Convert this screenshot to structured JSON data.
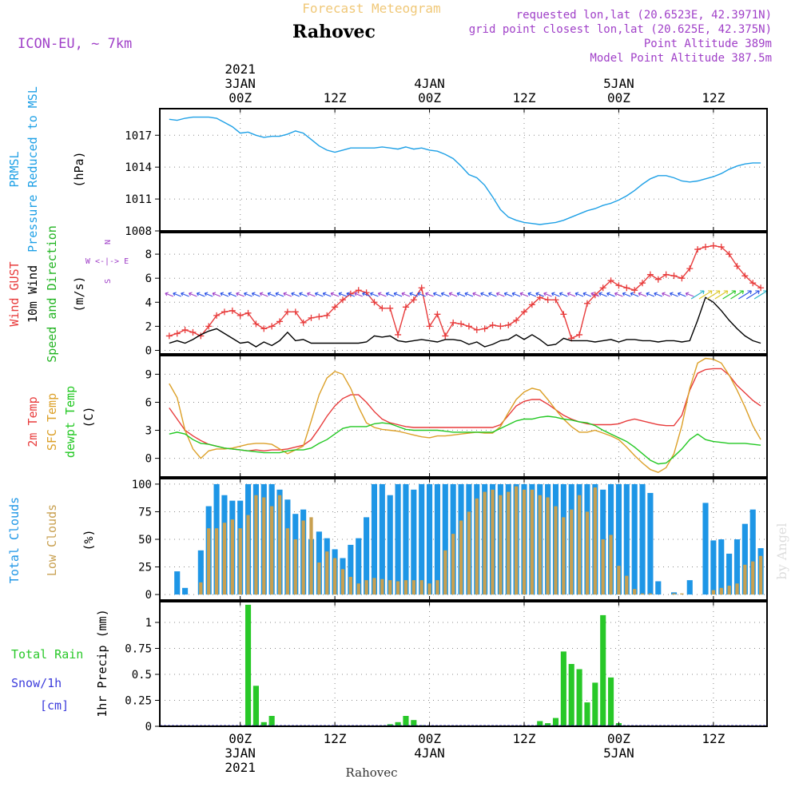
{
  "header": {
    "product": "Forecast Meteogram",
    "place": "Rahovec",
    "model": "ICON-EU, ~ 7km",
    "requested": "requested lon,lat (20.6523E, 42.3971N)",
    "grid_point": "grid point closest lon,lat (20.625E, 42.375N)",
    "point_alt": "Point Altitude 389m",
    "model_alt": "Model Point Altitude 387.5m",
    "footer_place": "Rahovec",
    "watermark": "by Angel"
  },
  "time_axis": {
    "top": [
      {
        "t": 0,
        "lines": [
          "2021",
          "3JAN",
          "00Z"
        ]
      },
      {
        "t": 12,
        "lines": [
          "12Z"
        ]
      },
      {
        "t": 24,
        "lines": [
          "4JAN",
          "00Z"
        ]
      },
      {
        "t": 36,
        "lines": [
          "12Z"
        ]
      },
      {
        "t": 48,
        "lines": [
          "5JAN",
          "00Z"
        ]
      },
      {
        "t": 60,
        "lines": [
          "12Z"
        ]
      }
    ],
    "bottom": [
      {
        "t": 0,
        "lines": [
          "00Z",
          "3JAN",
          "2021"
        ]
      },
      {
        "t": 12,
        "lines": [
          "12Z"
        ]
      },
      {
        "t": 24,
        "lines": [
          "00Z",
          "4JAN"
        ]
      },
      {
        "t": 36,
        "lines": [
          "12Z"
        ]
      },
      {
        "t": 48,
        "lines": [
          "00Z",
          "5JAN"
        ]
      },
      {
        "t": 60,
        "lines": [
          "12Z"
        ]
      }
    ]
  },
  "colors": {
    "pressure": "#1ea0e6",
    "gust": "#e83c3c",
    "wind10m": "#000000",
    "wind_green": "#22b422",
    "compass": "#a040c8",
    "t2m": "#e83c3c",
    "sfc": "#dca028",
    "dewpt": "#22c822",
    "total_clouds": "#1e96e6",
    "low_clouds": "#c8a050",
    "rain": "#28c828",
    "snow": "#3c3cdc",
    "header_orange": "#f0c878",
    "header_purple": "#a040c8"
  },
  "panels": {
    "pressure": {
      "label_colored": [
        "PRMSL",
        "Pressure Reduced to MSL"
      ],
      "unit": "(hPa)"
    },
    "wind": {
      "label_red": "Wind GUST",
      "label_black": "10m Wind",
      "label_green": "Speed and Direction",
      "unit": "(m/s)",
      "compass": [
        "N",
        "W <-|-> E",
        "S"
      ]
    },
    "temp": {
      "label_red": "2m Temp",
      "label_orange": "SFC Temp",
      "label_green": "dewpt Temp",
      "unit": "(C)"
    },
    "clouds": {
      "label_blue": "Total Clouds",
      "label_orange": "Low Clouds",
      "unit": "(%)"
    },
    "precip": {
      "label_rain": "Total Rain",
      "label_snow": "Snow/1h",
      "label_cm": "[cm]",
      "unit": "1hr Precip (mm)"
    }
  },
  "chart_data": [
    {
      "type": "line",
      "name": "PRMSL",
      "ylabel": "(hPa)",
      "ylim": [
        1008,
        1019.5
      ],
      "yticks": [
        1008,
        1011,
        1014,
        1017
      ],
      "x": [
        -9,
        -8,
        -7,
        -6,
        -5,
        -4,
        -3,
        -2,
        -1,
        0,
        1,
        2,
        3,
        4,
        5,
        6,
        7,
        8,
        9,
        10,
        11,
        12,
        13,
        14,
        15,
        16,
        17,
        18,
        19,
        20,
        21,
        22,
        23,
        24,
        25,
        26,
        27,
        28,
        29,
        30,
        31,
        32,
        33,
        34,
        35,
        36,
        37,
        38,
        39,
        40,
        41,
        42,
        43,
        44,
        45,
        46,
        47,
        48,
        49,
        50,
        51,
        52,
        53,
        54,
        55,
        56,
        57,
        58,
        59,
        60,
        61,
        62,
        63,
        64,
        65,
        66
      ],
      "series": [
        {
          "values": [
            1018.5,
            1018.4,
            1018.6,
            1018.7,
            1018.7,
            1018.7,
            1018.6,
            1018.2,
            1017.8,
            1017.2,
            1017.3,
            1017.0,
            1016.8,
            1016.9,
            1016.9,
            1017.1,
            1017.4,
            1017.2,
            1016.6,
            1016.0,
            1015.6,
            1015.4,
            1015.6,
            1015.8,
            1015.8,
            1015.8,
            1015.8,
            1015.9,
            1015.8,
            1015.7,
            1015.9,
            1015.7,
            1015.8,
            1015.6,
            1015.5,
            1015.2,
            1014.8,
            1014.1,
            1013.3,
            1013.0,
            1012.3,
            1011.2,
            1010.0,
            1009.3,
            1009.0,
            1008.8,
            1008.7,
            1008.6,
            1008.7,
            1008.8,
            1009.0,
            1009.3,
            1009.6,
            1009.9,
            1010.1,
            1010.4,
            1010.6,
            1010.9,
            1011.3,
            1011.8,
            1012.4,
            1012.9,
            1013.2,
            1013.2,
            1013.0,
            1012.7,
            1012.6,
            1012.7,
            1012.9,
            1013.1,
            1013.4,
            1013.8,
            1014.1,
            1014.3,
            1014.4,
            1014.4
          ]
        }
      ]
    },
    {
      "type": "line",
      "name": "Wind",
      "ylabel": "(m/s)",
      "ylim": [
        -0.3,
        9.8
      ],
      "yticks": [
        0,
        2,
        4,
        6,
        8
      ],
      "x": [
        -9,
        -8,
        -7,
        -6,
        -5,
        -4,
        -3,
        -2,
        -1,
        0,
        1,
        2,
        3,
        4,
        5,
        6,
        7,
        8,
        9,
        10,
        11,
        12,
        13,
        14,
        15,
        16,
        17,
        18,
        19,
        20,
        21,
        22,
        23,
        24,
        25,
        26,
        27,
        28,
        29,
        30,
        31,
        32,
        33,
        34,
        35,
        36,
        37,
        38,
        39,
        40,
        41,
        42,
        43,
        44,
        45,
        46,
        47,
        48,
        49,
        50,
        51,
        52,
        53,
        54,
        55,
        56,
        57,
        58,
        59,
        60,
        61,
        62,
        63,
        64,
        65,
        66
      ],
      "series": [
        {
          "name": "Wind GUST",
          "values": [
            1.2,
            1.4,
            1.7,
            1.5,
            1.2,
            2.0,
            2.9,
            3.2,
            3.3,
            2.9,
            3.1,
            2.2,
            1.8,
            2.0,
            2.4,
            3.2,
            3.2,
            2.3,
            2.7,
            2.8,
            2.9,
            3.6,
            4.2,
            4.7,
            5.0,
            4.8,
            4.0,
            3.5,
            3.5,
            1.3,
            3.6,
            4.2,
            5.2,
            2.0,
            3.0,
            1.2,
            2.3,
            2.2,
            2.0,
            1.7,
            1.8,
            2.1,
            2.0,
            2.1,
            2.5,
            3.2,
            3.8,
            4.4,
            4.2,
            4.2,
            3.0,
            1.0,
            1.3,
            3.9,
            4.6,
            5.2,
            5.8,
            5.4,
            5.2,
            5.0,
            5.6,
            6.3,
            5.9,
            6.3,
            6.2,
            6.0,
            6.8,
            8.4,
            8.6,
            8.7,
            8.6,
            8.0,
            7.0,
            6.2,
            5.6,
            5.2
          ]
        },
        {
          "name": "10m Wind",
          "values": [
            0.6,
            0.8,
            0.6,
            0.9,
            1.3,
            1.6,
            1.8,
            1.4,
            1.0,
            0.6,
            0.7,
            0.3,
            0.7,
            0.4,
            0.8,
            1.5,
            0.8,
            0.9,
            0.6,
            0.6,
            0.6,
            0.6,
            0.6,
            0.6,
            0.6,
            0.7,
            1.2,
            1.1,
            1.2,
            0.8,
            0.7,
            0.8,
            0.9,
            0.8,
            0.7,
            0.9,
            0.9,
            0.8,
            0.5,
            0.7,
            0.3,
            0.5,
            0.8,
            0.9,
            1.3,
            0.9,
            1.3,
            0.9,
            0.4,
            0.5,
            1.0,
            0.8,
            0.8,
            0.8,
            0.7,
            0.8,
            0.9,
            0.7,
            0.9,
            0.9,
            0.8,
            0.8,
            0.7,
            0.8,
            0.8,
            0.7,
            0.8,
            2.5,
            4.4,
            4.0,
            3.3,
            2.5,
            1.8,
            1.2,
            0.8,
            0.6
          ]
        }
      ]
    },
    {
      "type": "line",
      "name": "Temperature",
      "ylabel": "(C)",
      "ylim": [
        -2,
        11
      ],
      "yticks": [
        0,
        3,
        6,
        9
      ],
      "x": [
        -9,
        -8,
        -7,
        -6,
        -5,
        -4,
        -3,
        -2,
        -1,
        0,
        1,
        2,
        3,
        4,
        5,
        6,
        7,
        8,
        9,
        10,
        11,
        12,
        13,
        14,
        15,
        16,
        17,
        18,
        19,
        20,
        21,
        22,
        23,
        24,
        25,
        26,
        27,
        28,
        29,
        30,
        31,
        32,
        33,
        34,
        35,
        36,
        37,
        38,
        39,
        40,
        41,
        42,
        43,
        44,
        45,
        46,
        47,
        48,
        49,
        50,
        51,
        52,
        53,
        54,
        55,
        56,
        57,
        58,
        59,
        60,
        61,
        62,
        63,
        64,
        65,
        66
      ],
      "series": [
        {
          "name": "2m Temp",
          "values": [
            5.4,
            4.2,
            3.0,
            2.4,
            1.9,
            1.5,
            1.3,
            1.1,
            1.0,
            0.9,
            0.8,
            0.9,
            0.8,
            0.9,
            0.9,
            1.0,
            1.2,
            1.4,
            2.0,
            3.2,
            4.5,
            5.6,
            6.4,
            6.8,
            6.8,
            6.0,
            5.0,
            4.2,
            3.8,
            3.6,
            3.4,
            3.3,
            3.3,
            3.3,
            3.3,
            3.3,
            3.3,
            3.3,
            3.3,
            3.3,
            3.3,
            3.3,
            3.6,
            4.6,
            5.6,
            6.1,
            6.3,
            6.3,
            5.8,
            5.2,
            4.6,
            4.2,
            3.9,
            3.7,
            3.6,
            3.6,
            3.6,
            3.7,
            4.0,
            4.2,
            4.0,
            3.8,
            3.6,
            3.5,
            3.5,
            4.6,
            7.3,
            9.1,
            9.5,
            9.6,
            9.6,
            8.9,
            7.8,
            7.0,
            6.2,
            5.6
          ]
        },
        {
          "name": "SFC Temp",
          "values": [
            8.0,
            6.5,
            3.0,
            1.0,
            0.0,
            0.8,
            1.0,
            1.0,
            1.1,
            1.3,
            1.5,
            1.6,
            1.6,
            1.5,
            1.0,
            0.5,
            0.9,
            1.3,
            4.0,
            6.8,
            8.6,
            9.3,
            9.0,
            7.5,
            5.5,
            3.8,
            3.3,
            3.1,
            3.0,
            2.9,
            2.7,
            2.5,
            2.3,
            2.2,
            2.4,
            2.4,
            2.5,
            2.6,
            2.7,
            2.8,
            2.7,
            2.7,
            3.4,
            4.9,
            6.3,
            7.1,
            7.5,
            7.3,
            6.3,
            5.2,
            4.2,
            3.4,
            2.8,
            2.8,
            3.0,
            2.7,
            2.4,
            2.0,
            1.2,
            0.3,
            -0.5,
            -1.2,
            -1.5,
            -1.0,
            0.5,
            3.5,
            7.5,
            10.2,
            10.7,
            10.6,
            10.2,
            8.9,
            7.3,
            5.5,
            3.5,
            2.0
          ]
        },
        {
          "name": "dewpt Temp",
          "values": [
            2.6,
            2.8,
            2.6,
            2.0,
            1.6,
            1.5,
            1.3,
            1.1,
            1.0,
            0.9,
            0.8,
            0.7,
            0.6,
            0.6,
            0.6,
            0.8,
            0.9,
            0.9,
            1.1,
            1.6,
            2.0,
            2.6,
            3.2,
            3.4,
            3.4,
            3.4,
            3.7,
            3.8,
            3.7,
            3.4,
            3.1,
            3.0,
            3.0,
            3.0,
            3.0,
            2.9,
            2.8,
            2.8,
            2.8,
            2.8,
            2.8,
            2.8,
            3.2,
            3.6,
            4.0,
            4.2,
            4.2,
            4.4,
            4.5,
            4.4,
            4.2,
            4.1,
            3.9,
            3.8,
            3.5,
            3.0,
            2.6,
            2.2,
            1.8,
            1.2,
            0.5,
            -0.2,
            -0.6,
            -0.5,
            0.2,
            1.0,
            2.0,
            2.6,
            2.0,
            1.8,
            1.7,
            1.6,
            1.6,
            1.6,
            1.5,
            1.4
          ]
        }
      ]
    },
    {
      "type": "bar",
      "name": "Clouds",
      "ylabel": "(%)",
      "ylim": [
        -5,
        105
      ],
      "yticks": [
        0,
        25,
        50,
        75,
        100
      ],
      "x": [
        -9,
        -8,
        -7,
        -6,
        -5,
        -4,
        -3,
        -2,
        -1,
        0,
        1,
        2,
        3,
        4,
        5,
        6,
        7,
        8,
        9,
        10,
        11,
        12,
        13,
        14,
        15,
        16,
        17,
        18,
        19,
        20,
        21,
        22,
        23,
        24,
        25,
        26,
        27,
        28,
        29,
        30,
        31,
        32,
        33,
        34,
        35,
        36,
        37,
        38,
        39,
        40,
        41,
        42,
        43,
        44,
        45,
        46,
        47,
        48,
        49,
        50,
        51,
        52,
        53,
        54,
        55,
        56,
        57,
        58,
        59,
        60,
        61,
        62,
        63,
        64,
        65,
        66
      ],
      "series": [
        {
          "name": "Total Clouds",
          "values": [
            0,
            21,
            6,
            0,
            40,
            80,
            100,
            90,
            85,
            85,
            100,
            100,
            100,
            100,
            95,
            86,
            73,
            77,
            50,
            57,
            51,
            41,
            33,
            45,
            51,
            70,
            100,
            100,
            90,
            100,
            100,
            95,
            100,
            100,
            100,
            100,
            100,
            100,
            100,
            100,
            100,
            100,
            100,
            100,
            100,
            100,
            100,
            100,
            100,
            100,
            100,
            100,
            100,
            100,
            100,
            95,
            100,
            100,
            100,
            100,
            100,
            92,
            12,
            0,
            2,
            0,
            13,
            0,
            83,
            49,
            50,
            37,
            50,
            64,
            77,
            42
          ]
        },
        {
          "name": "Low Clouds",
          "values": [
            0,
            0,
            0,
            0,
            11,
            60,
            60,
            65,
            68,
            60,
            72,
            90,
            88,
            80,
            90,
            60,
            50,
            67,
            70,
            29,
            39,
            33,
            23,
            16,
            10,
            13,
            15,
            14,
            13,
            12,
            13,
            13,
            13,
            10,
            13,
            40,
            55,
            67,
            75,
            87,
            93,
            95,
            90,
            93,
            98,
            95,
            95,
            90,
            88,
            80,
            70,
            77,
            90,
            75,
            97,
            50,
            54,
            26,
            17,
            5,
            1,
            1,
            0,
            0,
            1,
            1,
            0,
            0,
            0,
            4,
            6,
            8,
            10,
            27,
            30,
            35
          ]
        }
      ]
    },
    {
      "type": "bar",
      "name": "Precip",
      "ylabel": "1hr Precip (mm)",
      "ylim": [
        0,
        1.2
      ],
      "yticks": [
        0,
        0.25,
        0.5,
        0.75,
        1
      ],
      "x": [
        1,
        2,
        3,
        4,
        19,
        20,
        21,
        22,
        23,
        38,
        39,
        40,
        41,
        42,
        43,
        44,
        45,
        46,
        47,
        48
      ],
      "series": [
        {
          "name": "Total Rain",
          "values": [
            1.17,
            0.39,
            0.04,
            0.1,
            0.02,
            0.04,
            0.1,
            0.06,
            0.01,
            0.05,
            0.03,
            0.08,
            0.72,
            0.6,
            0.55,
            0.23,
            0.42,
            1.07,
            0.47,
            0.03
          ]
        }
      ]
    }
  ]
}
